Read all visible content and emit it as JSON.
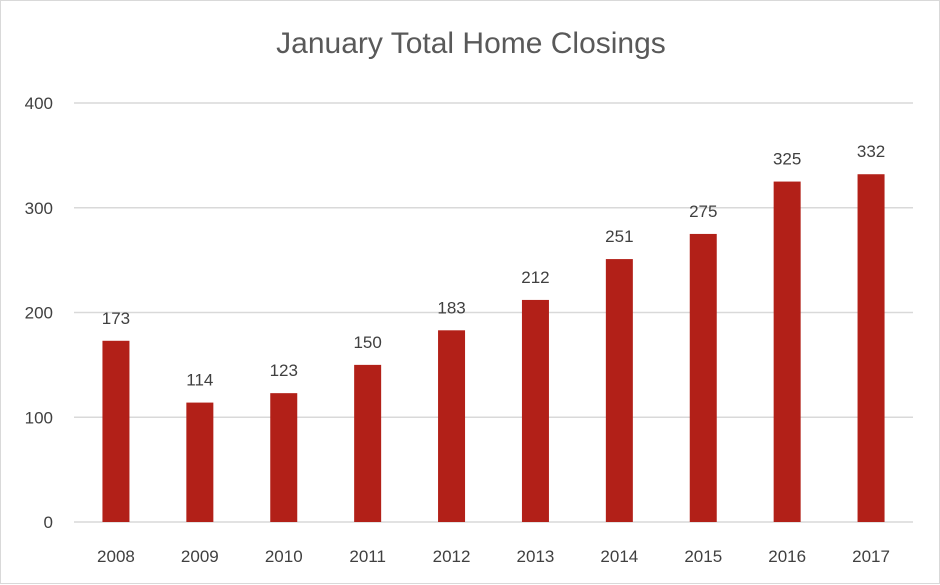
{
  "chart_data": {
    "type": "bar",
    "title": "January Total Home Closings",
    "xlabel": "",
    "ylabel": "",
    "categories": [
      "2008",
      "2009",
      "2010",
      "2011",
      "2012",
      "2013",
      "2014",
      "2015",
      "2016",
      "2017"
    ],
    "values": [
      173,
      114,
      123,
      150,
      183,
      212,
      251,
      275,
      325,
      332
    ],
    "ylim": [
      0,
      400
    ],
    "yticks": [
      0,
      100,
      200,
      300,
      400
    ],
    "grid": true,
    "legend": "none",
    "colors": {
      "bar": "#b22018",
      "grid": "#d9d9d9",
      "text": "#404040",
      "title": "#595959"
    }
  }
}
